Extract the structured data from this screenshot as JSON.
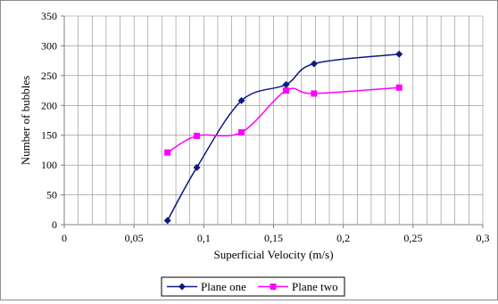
{
  "chart_data": {
    "type": "line",
    "title": "",
    "xlabel": "Superficial Velocity (m/s)",
    "ylabel": "Number of bubbles",
    "xlim": [
      0,
      0.3
    ],
    "ylim": [
      0,
      350
    ],
    "grid": true,
    "legend": "bottom",
    "x_ticks": [
      {
        "value": 0,
        "label": "0"
      },
      {
        "value": 0.05,
        "label": "0,05"
      },
      {
        "value": 0.1,
        "label": "0,1"
      },
      {
        "value": 0.15,
        "label": "0,15"
      },
      {
        "value": 0.2,
        "label": "0,2"
      },
      {
        "value": 0.25,
        "label": "0,25"
      },
      {
        "value": 0.3,
        "label": "0,3"
      }
    ],
    "y_ticks": [
      {
        "value": 0,
        "label": "0"
      },
      {
        "value": 50,
        "label": "50"
      },
      {
        "value": 100,
        "label": "100"
      },
      {
        "value": 150,
        "label": "150"
      },
      {
        "value": 200,
        "label": "200"
      },
      {
        "value": 250,
        "label": "250"
      },
      {
        "value": 300,
        "label": "300"
      },
      {
        "value": 350,
        "label": "350"
      }
    ],
    "series": [
      {
        "name": "Plane one",
        "color": "#0d1a80",
        "marker": "diamond",
        "x": [
          0.074,
          0.095,
          0.127,
          0.159,
          0.179,
          0.24
        ],
        "y": [
          7,
          96,
          208,
          235,
          270,
          286
        ]
      },
      {
        "name": "Plane two",
        "color": "#ff00ff",
        "marker": "square",
        "x": [
          0.074,
          0.095,
          0.127,
          0.159,
          0.179,
          0.24
        ],
        "y": [
          121,
          149,
          155,
          225,
          220,
          230
        ]
      }
    ]
  }
}
